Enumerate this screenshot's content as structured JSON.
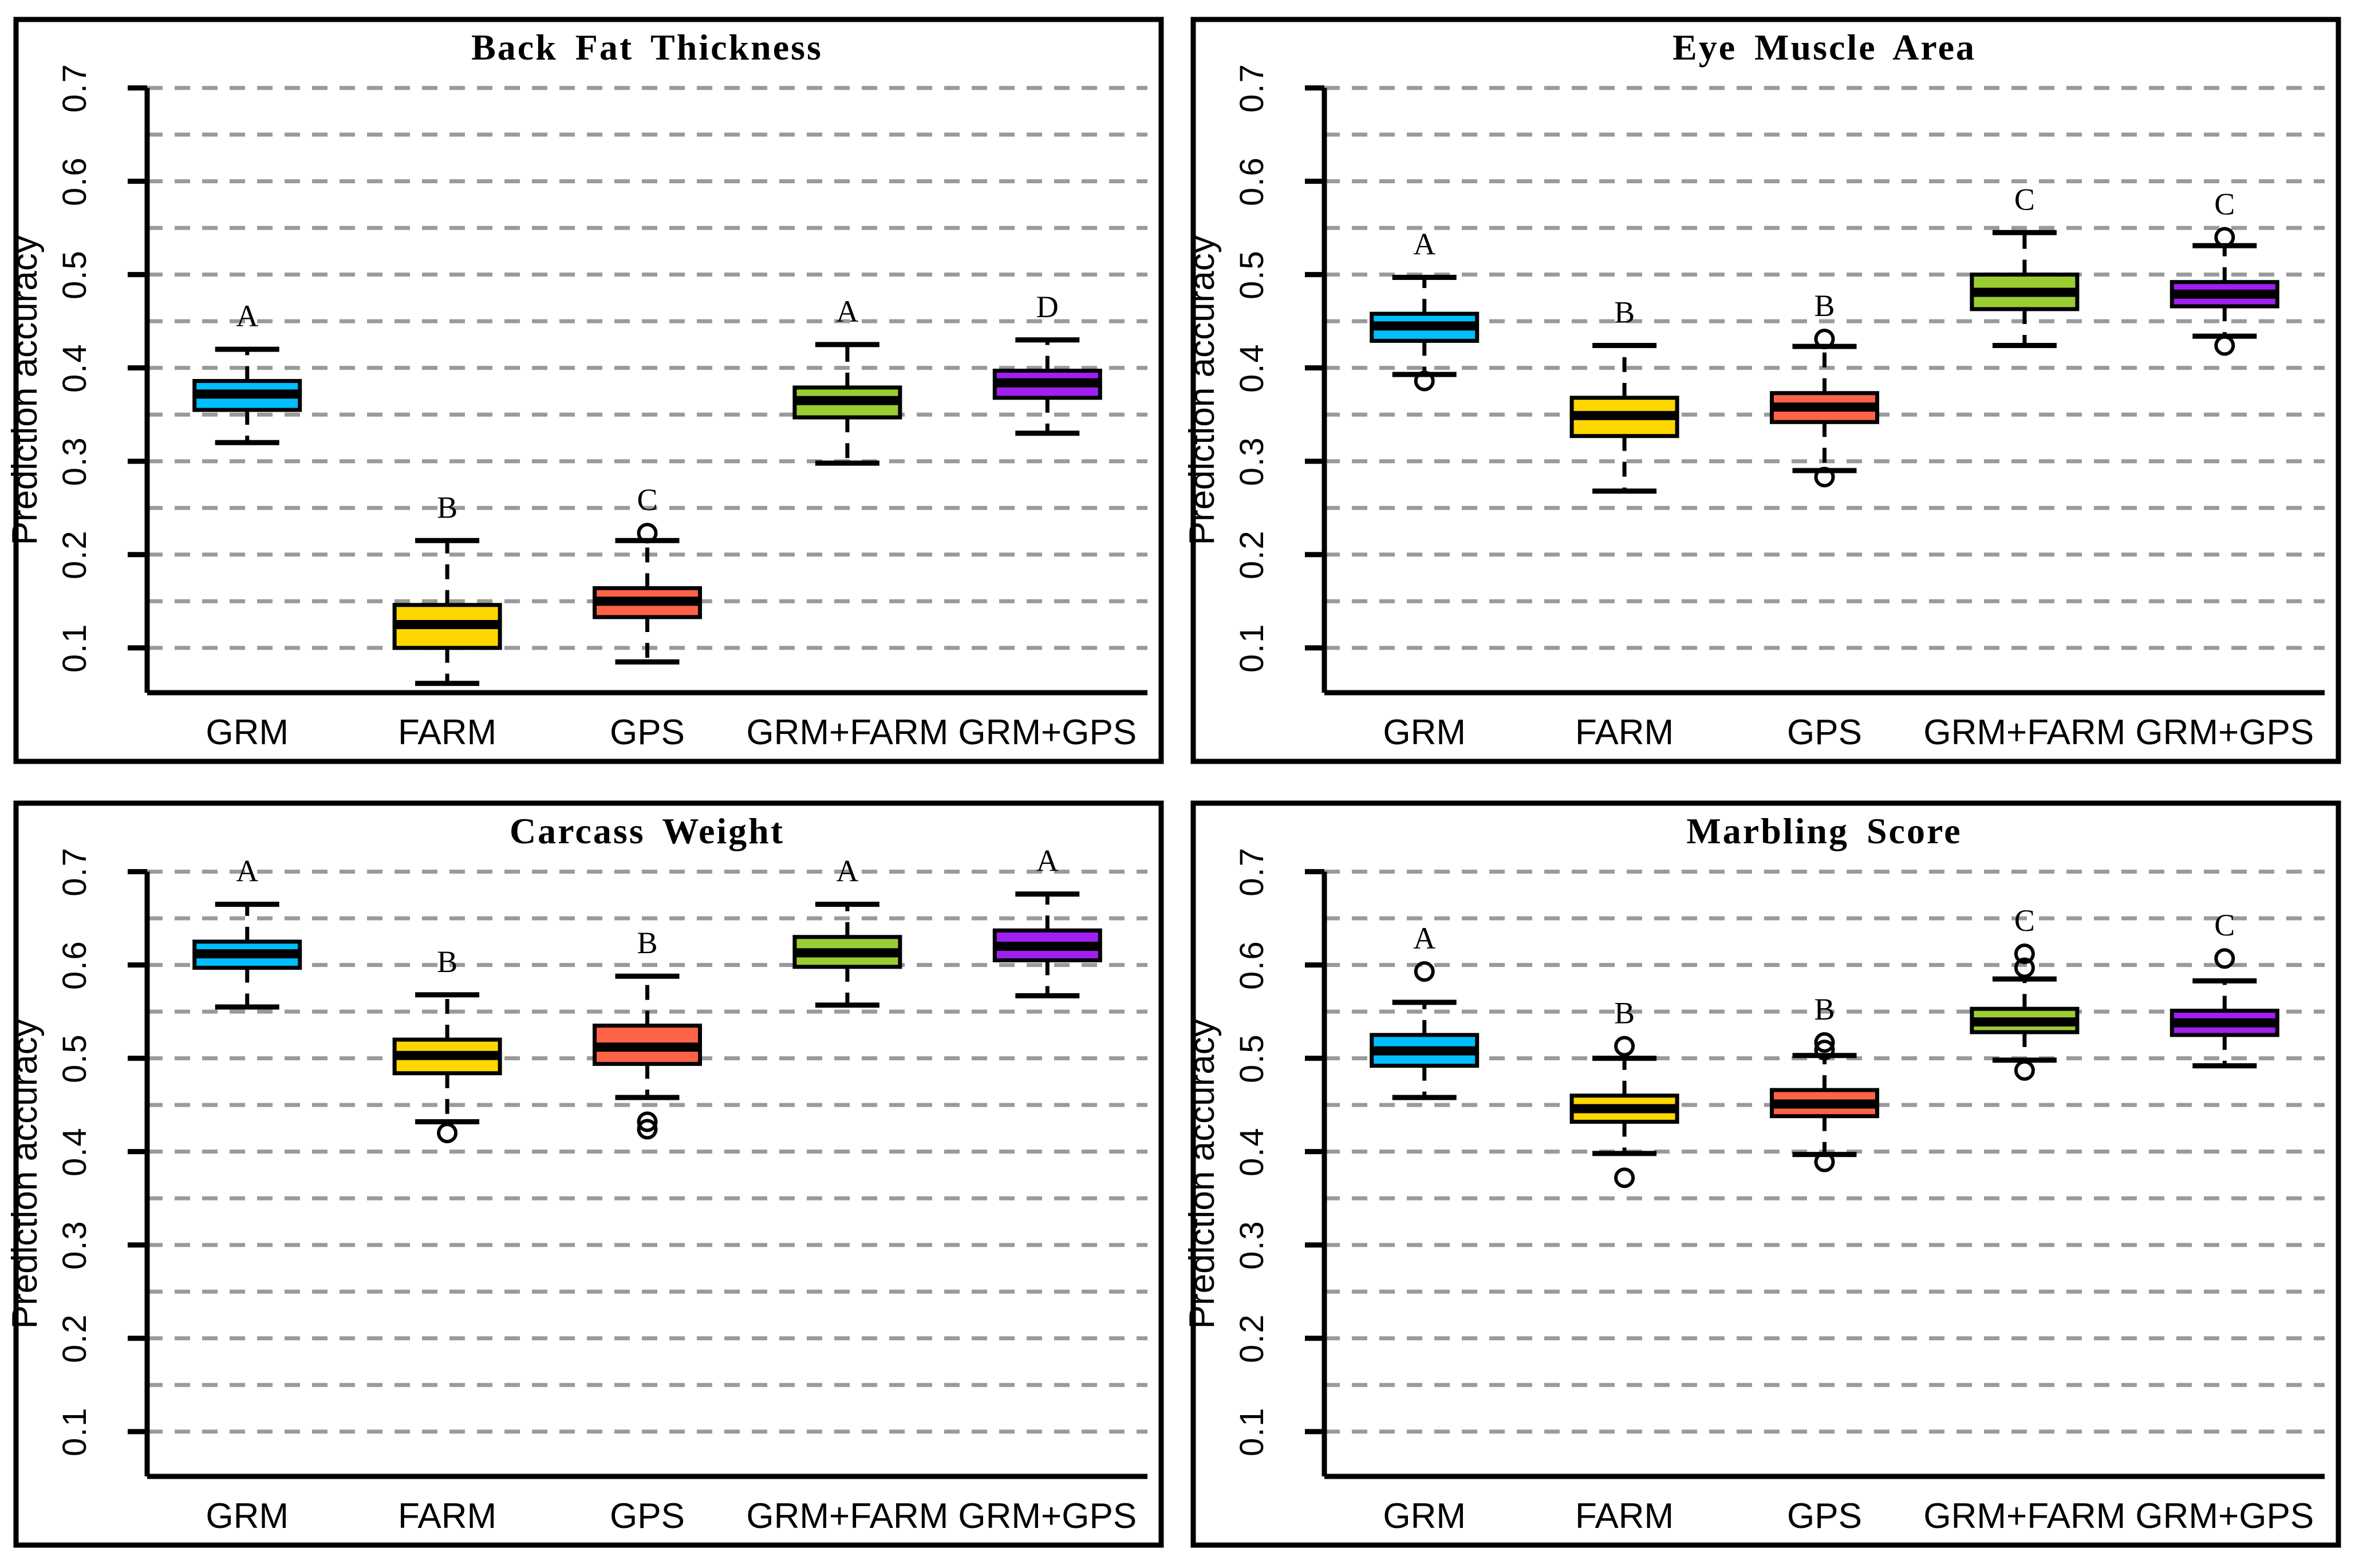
{
  "figure": {
    "background": "#ffffff",
    "axis_color": "#000000",
    "grid_color": "#9A9A9A"
  },
  "chart_data": {
    "type": "box",
    "layout": "2x2-grid",
    "ylabel": "Prediction accuracy",
    "categories": [
      "GRM",
      "FARM",
      "GPS",
      "GRM+FARM",
      "GRM+GPS"
    ],
    "box_colors": [
      "#00BFFF",
      "#FFD700",
      "#FF6347",
      "#9ACD32",
      "#A020F0"
    ],
    "yticks": [
      0.1,
      0.2,
      0.3,
      0.4,
      0.5,
      0.6,
      0.7
    ],
    "ytick_labels": [
      "0.1",
      "0.2",
      "0.3",
      "0.4",
      "0.5",
      "0.6",
      "0.7"
    ],
    "grid_lines": {
      "from": 0.1,
      "to": 0.7,
      "step": 0.05,
      "color": "#9A9A9A",
      "style": "dashed"
    },
    "ylim": [
      0.052,
      0.72
    ],
    "legend": "none",
    "panels": [
      {
        "title": "Back Fat Thickness",
        "boxes": [
          {
            "category": "GRM",
            "letter": "A",
            "whisker_low": 0.32,
            "q1": 0.355,
            "median": 0.372,
            "q3": 0.386,
            "whisker_high": 0.42,
            "outliers": []
          },
          {
            "category": "FARM",
            "letter": "B",
            "whisker_low": 0.062,
            "q1": 0.1,
            "median": 0.125,
            "q3": 0.146,
            "whisker_high": 0.215,
            "outliers": []
          },
          {
            "category": "GPS",
            "letter": "C",
            "whisker_low": 0.085,
            "q1": 0.133,
            "median": 0.15,
            "q3": 0.164,
            "whisker_high": 0.215,
            "outliers": [
              0.223
            ]
          },
          {
            "category": "GRM+FARM",
            "letter": "A",
            "whisker_low": 0.298,
            "q1": 0.347,
            "median": 0.365,
            "q3": 0.379,
            "whisker_high": 0.425,
            "outliers": []
          },
          {
            "category": "GRM+GPS",
            "letter": "D",
            "whisker_low": 0.33,
            "q1": 0.368,
            "median": 0.384,
            "q3": 0.397,
            "whisker_high": 0.43,
            "outliers": []
          }
        ]
      },
      {
        "title": "Eye Muscle Area",
        "boxes": [
          {
            "category": "GRM",
            "letter": "A",
            "whisker_low": 0.393,
            "q1": 0.429,
            "median": 0.445,
            "q3": 0.458,
            "whisker_high": 0.497,
            "outliers": [
              0.386
            ]
          },
          {
            "category": "FARM",
            "letter": "B",
            "whisker_low": 0.268,
            "q1": 0.327,
            "median": 0.349,
            "q3": 0.368,
            "whisker_high": 0.424,
            "outliers": []
          },
          {
            "category": "GPS",
            "letter": "B",
            "whisker_low": 0.29,
            "q1": 0.342,
            "median": 0.358,
            "q3": 0.373,
            "whisker_high": 0.423,
            "outliers": [
              0.431,
              0.283
            ]
          },
          {
            "category": "GRM+FARM",
            "letter": "C",
            "whisker_low": 0.424,
            "q1": 0.463,
            "median": 0.481,
            "q3": 0.5,
            "whisker_high": 0.545,
            "outliers": []
          },
          {
            "category": "GRM+GPS",
            "letter": "C",
            "whisker_low": 0.434,
            "q1": 0.466,
            "median": 0.479,
            "q3": 0.492,
            "whisker_high": 0.531,
            "outliers": [
              0.54,
              0.424
            ]
          }
        ]
      },
      {
        "title": "Carcass Weight",
        "boxes": [
          {
            "category": "GRM",
            "letter": "A",
            "whisker_low": 0.555,
            "q1": 0.597,
            "median": 0.612,
            "q3": 0.625,
            "whisker_high": 0.665,
            "outliers": []
          },
          {
            "category": "FARM",
            "letter": "B",
            "whisker_low": 0.432,
            "q1": 0.484,
            "median": 0.503,
            "q3": 0.52,
            "whisker_high": 0.568,
            "outliers": [
              0.42
            ]
          },
          {
            "category": "GPS",
            "letter": "B",
            "whisker_low": 0.458,
            "q1": 0.494,
            "median": 0.512,
            "q3": 0.535,
            "whisker_high": 0.588,
            "outliers": [
              0.432,
              0.424
            ]
          },
          {
            "category": "GRM+FARM",
            "letter": "A",
            "whisker_low": 0.557,
            "q1": 0.598,
            "median": 0.613,
            "q3": 0.63,
            "whisker_high": 0.665,
            "outliers": []
          },
          {
            "category": "GRM+GPS",
            "letter": "A",
            "whisker_low": 0.567,
            "q1": 0.605,
            "median": 0.62,
            "q3": 0.637,
            "whisker_high": 0.676,
            "outliers": []
          }
        ]
      },
      {
        "title": "Marbling Score",
        "boxes": [
          {
            "category": "GRM",
            "letter": "A",
            "whisker_low": 0.458,
            "q1": 0.492,
            "median": 0.508,
            "q3": 0.525,
            "whisker_high": 0.56,
            "outliers": [
              0.593
            ]
          },
          {
            "category": "FARM",
            "letter": "B",
            "whisker_low": 0.398,
            "q1": 0.432,
            "median": 0.446,
            "q3": 0.46,
            "whisker_high": 0.5,
            "outliers": [
              0.513,
              0.372
            ]
          },
          {
            "category": "GPS",
            "letter": "B",
            "whisker_low": 0.397,
            "q1": 0.438,
            "median": 0.451,
            "q3": 0.466,
            "whisker_high": 0.503,
            "outliers": [
              0.517,
              0.509,
              0.389
            ]
          },
          {
            "category": "GRM+FARM",
            "letter": "C",
            "whisker_low": 0.498,
            "q1": 0.528,
            "median": 0.539,
            "q3": 0.553,
            "whisker_high": 0.585,
            "outliers": [
              0.612,
              0.597,
              0.487
            ]
          },
          {
            "category": "GRM+GPS",
            "letter": "C",
            "whisker_low": 0.492,
            "q1": 0.525,
            "median": 0.538,
            "q3": 0.551,
            "whisker_high": 0.583,
            "outliers": [
              0.607
            ]
          }
        ]
      }
    ]
  }
}
